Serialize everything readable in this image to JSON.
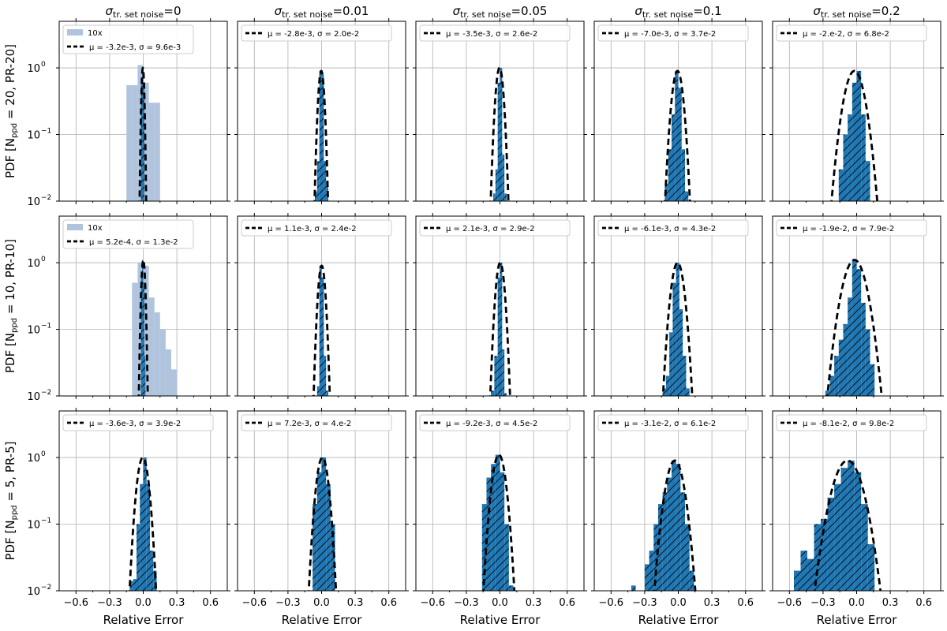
{
  "colors": {
    "bar": "#1f77b4",
    "bar_inset": "#b0c4de",
    "fit": "#000000",
    "grid": "#b0b0b0"
  },
  "chart_data": {
    "type": "histogram-grid",
    "x_axis": {
      "label": "Relative Error",
      "range": [
        -0.75,
        0.75
      ],
      "ticks": [
        -0.6,
        -0.3,
        0.0,
        0.3,
        0.6
      ],
      "tick_labels": [
        "−0.6",
        "−0.3",
        "0.0",
        "0.3",
        "0.6"
      ]
    },
    "y_axis": {
      "scale": "log",
      "range": [
        0.01,
        5
      ],
      "ticks": [
        0.01,
        0.1,
        1
      ],
      "tick_labels": [
        "10",
        "10",
        "10"
      ],
      "tick_exponents": [
        "−2",
        "−1",
        "0"
      ]
    },
    "columns": [
      {
        "title_symbol": "σ",
        "title_sub": "tr. set noise",
        "title_value": "=0",
        "noise": 0
      },
      {
        "title_symbol": "σ",
        "title_sub": "tr. set noise",
        "title_value": "=0.01",
        "noise": 0.01
      },
      {
        "title_symbol": "σ",
        "title_sub": "tr. set noise",
        "title_value": "=0.05",
        "noise": 0.05
      },
      {
        "title_symbol": "σ",
        "title_sub": "tr. set noise",
        "title_value": "=0.1",
        "noise": 0.1
      },
      {
        "title_symbol": "σ",
        "title_sub": "tr. set noise",
        "title_value": "=0.2",
        "noise": 0.2
      }
    ],
    "rows": [
      {
        "ylabel_pre": "PDF  [N",
        "ylabel_sub": "ppd",
        "ylabel_post": " = 20,  PR-20]",
        "nppd": 20
      },
      {
        "ylabel_pre": "PDF  [N",
        "ylabel_sub": "ppd",
        "ylabel_post": " = 10,  PR-10]",
        "nppd": 10
      },
      {
        "ylabel_pre": "PDF  [N",
        "ylabel_sub": "ppd",
        "ylabel_post": " = 5,  PR-5]",
        "nppd": 5
      }
    ],
    "panels": [
      [
        {
          "legend_fit": "μ = -3.2e-3, σ = 9.6e-3",
          "legend_inset": "10x",
          "mu": -0.0032,
          "sigma": 0.0096,
          "inset_bins": [
            [
              -0.15,
              -0.1,
              0.55
            ],
            [
              -0.1,
              -0.05,
              0.55
            ],
            [
              -0.05,
              0,
              1.1
            ],
            [
              0,
              0.05,
              0.6
            ],
            [
              0.05,
              0.1,
              0.3
            ],
            [
              0.1,
              0.15,
              0.3
            ]
          ],
          "bins": [
            [
              -0.02,
              -0.01,
              0.65
            ],
            [
              -0.01,
              0.0,
              1.0
            ],
            [
              0.0,
              0.01,
              0.6
            ]
          ]
        },
        {
          "legend_fit": "μ = -2.8e-3, σ = 2.0e-2",
          "mu": -0.0028,
          "sigma": 0.02,
          "bins": [
            [
              -0.06,
              -0.04,
              0.014
            ],
            [
              -0.04,
              -0.02,
              0.04
            ],
            [
              -0.02,
              0.0,
              0.9
            ],
            [
              0.0,
              0.02,
              0.8
            ],
            [
              0.02,
              0.04,
              0.04
            ],
            [
              0.04,
              0.06,
              0.02
            ]
          ]
        },
        {
          "legend_fit": "μ = -3.5e-3, σ = 2.6e-2",
          "mu": -0.0035,
          "sigma": 0.026,
          "bins": [
            [
              -0.06,
              -0.04,
              0.013
            ],
            [
              -0.04,
              -0.02,
              0.03
            ],
            [
              -0.02,
              0.0,
              0.6
            ],
            [
              0.0,
              0.02,
              1.0
            ],
            [
              0.02,
              0.04,
              0.05
            ],
            [
              0.04,
              0.06,
              0.013
            ]
          ]
        },
        {
          "legend_fit": "μ = -7.0e-3, σ = 3.7e-2",
          "mu": -0.007,
          "sigma": 0.037,
          "bins": [
            [
              -0.12,
              -0.09,
              0.018
            ],
            [
              -0.09,
              -0.06,
              0.06
            ],
            [
              -0.06,
              -0.03,
              0.2
            ],
            [
              -0.03,
              0.0,
              0.9
            ],
            [
              0.0,
              0.03,
              0.5
            ],
            [
              0.03,
              0.06,
              0.06
            ],
            [
              0.06,
              0.09,
              0.014
            ]
          ]
        },
        {
          "legend_fit": "μ = -2.e-2, σ = 6.8e-2",
          "mu": -0.02,
          "sigma": 0.068,
          "bins": [
            [
              -0.16,
              -0.12,
              0.03
            ],
            [
              -0.12,
              -0.08,
              0.1
            ],
            [
              -0.08,
              -0.04,
              0.2
            ],
            [
              -0.04,
              0.0,
              0.6
            ],
            [
              0.0,
              0.04,
              0.9
            ],
            [
              0.04,
              0.08,
              0.2
            ],
            [
              0.08,
              0.12,
              0.04
            ]
          ]
        }
      ],
      [
        {
          "legend_fit": "μ = 5.2e-4, σ = 1.3e-2",
          "legend_inset": "10x",
          "mu": 0.00052,
          "sigma": 0.013,
          "inset_bins": [
            [
              -0.1,
              -0.05,
              0.5
            ],
            [
              -0.05,
              0,
              1.0
            ],
            [
              0,
              0.05,
              0.9
            ],
            [
              0.05,
              0.1,
              0.3
            ],
            [
              0.1,
              0.15,
              0.18
            ],
            [
              0.15,
              0.2,
              0.1
            ],
            [
              0.2,
              0.25,
              0.05
            ],
            [
              0.25,
              0.3,
              0.025
            ]
          ],
          "bins": [
            [
              -0.02,
              -0.01,
              0.6
            ],
            [
              -0.01,
              0.0,
              1.1
            ],
            [
              0.0,
              0.01,
              0.5
            ],
            [
              0.01,
              0.02,
              0.04
            ]
          ]
        },
        {
          "legend_fit": "μ = 1.1e-3, σ = 2.4e-2",
          "mu": 0.0011,
          "sigma": 0.024,
          "bins": [
            [
              -0.04,
              -0.02,
              0.014
            ],
            [
              -0.02,
              0.0,
              0.9
            ],
            [
              0.0,
              0.02,
              0.6
            ],
            [
              0.02,
              0.04,
              0.04
            ],
            [
              0.04,
              0.06,
              0.012
            ]
          ]
        },
        {
          "legend_fit": "μ = 2.1e-3, σ = 2.9e-2",
          "mu": 0.0021,
          "sigma": 0.029,
          "bins": [
            [
              -0.08,
              -0.05,
              0.012
            ],
            [
              -0.05,
              -0.02,
              0.04
            ],
            [
              -0.02,
              0.0,
              0.6
            ],
            [
              0.0,
              0.02,
              1.0
            ],
            [
              0.02,
              0.04,
              0.05
            ],
            [
              0.04,
              0.06,
              0.011
            ]
          ]
        },
        {
          "legend_fit": "μ = -6.1e-3, σ = 4.3e-2",
          "mu": -0.0061,
          "sigma": 0.043,
          "bins": [
            [
              -0.14,
              -0.11,
              0.013
            ],
            [
              -0.11,
              -0.08,
              0.02
            ],
            [
              -0.08,
              -0.05,
              0.09
            ],
            [
              -0.05,
              -0.02,
              0.5
            ],
            [
              -0.02,
              0.01,
              1.0
            ],
            [
              0.01,
              0.04,
              0.2
            ],
            [
              0.04,
              0.07,
              0.04
            ],
            [
              0.07,
              0.1,
              0.013
            ]
          ]
        },
        {
          "legend_fit": "μ = -1.9e-2, σ = 7.9e-2",
          "mu": -0.019,
          "sigma": 0.079,
          "bins": [
            [
              -0.28,
              -0.24,
              0.012
            ],
            [
              -0.24,
              -0.2,
              0.02
            ],
            [
              -0.2,
              -0.16,
              0.04
            ],
            [
              -0.16,
              -0.12,
              0.07
            ],
            [
              -0.12,
              -0.08,
              0.12
            ],
            [
              -0.08,
              -0.04,
              0.3
            ],
            [
              -0.04,
              0.0,
              1.1
            ],
            [
              0.0,
              0.04,
              0.8
            ],
            [
              0.04,
              0.08,
              0.25
            ],
            [
              0.08,
              0.12,
              0.1
            ],
            [
              0.12,
              0.16,
              0.03
            ]
          ]
        }
      ],
      [
        {
          "legend_fit": "μ = -3.6e-3, σ = 3.9e-2",
          "mu": -0.0036,
          "sigma": 0.039,
          "bins": [
            [
              -0.12,
              -0.09,
              0.014
            ],
            [
              -0.09,
              -0.06,
              0.015
            ],
            [
              -0.06,
              -0.03,
              0.1
            ],
            [
              -0.03,
              0.0,
              0.4
            ],
            [
              0.0,
              0.03,
              1.0
            ],
            [
              0.03,
              0.06,
              0.4
            ],
            [
              0.06,
              0.09,
              0.04
            ],
            [
              0.09,
              0.12,
              0.02
            ]
          ]
        },
        {
          "legend_fit": "μ = 7.2e-3, σ = 4.e-2",
          "mu": 0.0072,
          "sigma": 0.04,
          "bins": [
            [
              -0.08,
              -0.04,
              0.2
            ],
            [
              -0.04,
              0.0,
              0.6
            ],
            [
              0.0,
              0.04,
              1.0
            ],
            [
              0.04,
              0.08,
              0.4
            ],
            [
              0.08,
              0.12,
              0.1
            ]
          ]
        },
        {
          "legend_fit": "μ = -9.2e-3, σ = 4.5e-2",
          "mu": -0.0092,
          "sigma": 0.045,
          "bins": [
            [
              -0.16,
              -0.12,
              0.2
            ],
            [
              -0.12,
              -0.08,
              0.5
            ],
            [
              -0.08,
              -0.04,
              0.8
            ],
            [
              -0.04,
              0.0,
              1.1
            ],
            [
              0.0,
              0.04,
              0.6
            ],
            [
              0.04,
              0.08,
              0.1
            ],
            [
              0.08,
              0.12,
              0.012
            ],
            [
              0.12,
              0.16,
              0.01
            ]
          ]
        },
        {
          "legend_fit": "μ = -3.1e-2, σ = 6.1e-2",
          "mu": -0.031,
          "sigma": 0.061,
          "bins": [
            [
              -0.42,
              -0.38,
              0.012
            ],
            [
              -0.3,
              -0.26,
              0.025
            ],
            [
              -0.26,
              -0.22,
              0.04
            ],
            [
              -0.22,
              -0.18,
              0.1
            ],
            [
              -0.18,
              -0.14,
              0.2
            ],
            [
              -0.14,
              -0.1,
              0.3
            ],
            [
              -0.1,
              -0.06,
              0.5
            ],
            [
              -0.06,
              -0.02,
              0.9
            ],
            [
              -0.02,
              0.02,
              0.8
            ],
            [
              0.02,
              0.06,
              0.3
            ],
            [
              0.06,
              0.1,
              0.1
            ],
            [
              0.1,
              0.14,
              0.02
            ]
          ]
        },
        {
          "legend_fit": "μ = -8.1e-2, σ = 9.8e-2",
          "mu": -0.081,
          "sigma": 0.098,
          "bins": [
            [
              -0.56,
              -0.5,
              0.02
            ],
            [
              -0.5,
              -0.44,
              0.04
            ],
            [
              -0.44,
              -0.38,
              0.03
            ],
            [
              -0.38,
              -0.32,
              0.1
            ],
            [
              -0.32,
              -0.26,
              0.12
            ],
            [
              -0.26,
              -0.2,
              0.25
            ],
            [
              -0.2,
              -0.14,
              0.4
            ],
            [
              -0.14,
              -0.08,
              0.7
            ],
            [
              -0.08,
              -0.02,
              0.9
            ],
            [
              -0.02,
              0.04,
              0.6
            ],
            [
              0.04,
              0.1,
              0.2
            ],
            [
              0.1,
              0.16,
              0.05
            ]
          ]
        }
      ]
    ]
  }
}
